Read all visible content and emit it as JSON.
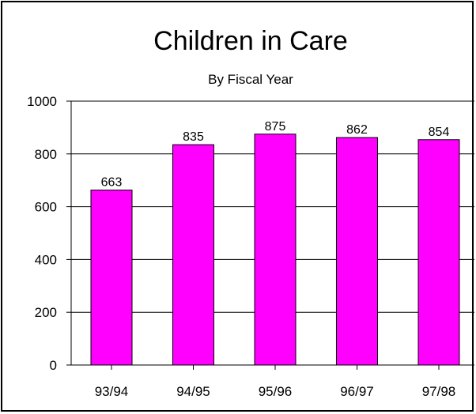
{
  "chart_data": {
    "type": "bar",
    "title": "Children in Care",
    "subtitle": "By Fiscal Year",
    "xlabel": "",
    "ylabel": "",
    "categories": [
      "93/94",
      "94/95",
      "95/96",
      "96/97",
      "97/98"
    ],
    "values": [
      663,
      835,
      875,
      862,
      854
    ],
    "data_labels": [
      "663",
      "835",
      "875",
      "862",
      "854"
    ],
    "ylim": [
      0,
      1000
    ],
    "yticks": [
      0,
      200,
      400,
      600,
      800,
      1000
    ],
    "ytick_labels": [
      "0",
      "200",
      "400",
      "600",
      "800",
      "1000"
    ],
    "grid": "horizontal",
    "legend": "none",
    "colors": {
      "bar_fill": "#ff00ff",
      "bar_stroke": "#000000",
      "grid": "#000000",
      "text": "#000000",
      "background": "#ffffff"
    }
  }
}
